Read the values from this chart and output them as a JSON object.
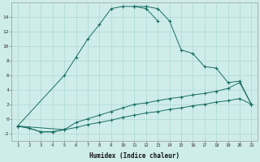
{
  "xlabel": "Humidex (Indice chaleur)",
  "background_color": "#ceecea",
  "grid_color": "#aed8d4",
  "line_color": "#1a6e64",
  "x_values": [
    1,
    2,
    3,
    4,
    5,
    6,
    7,
    8,
    9,
    10,
    11,
    12,
    13,
    14,
    15,
    16,
    17,
    18,
    19,
    20,
    21
  ],
  "series1": [
    -1.0,
    null,
    null,
    null,
    6.0,
    8.5,
    11.0,
    13.0,
    15.2,
    15.5,
    15.5,
    15.2,
    13.5,
    null,
    null,
    null,
    null,
    null,
    null,
    null,
    null
  ],
  "series2": [
    null,
    null,
    null,
    null,
    null,
    null,
    null,
    null,
    null,
    null,
    15.5,
    15.5,
    15.2,
    13.5,
    9.5,
    9.0,
    7.2,
    7.0,
    5.0,
    5.2,
    2.0
  ],
  "series3": [
    -1.0,
    -1.3,
    -1.8,
    -1.8,
    -1.5,
    null,
    null,
    null,
    null,
    null,
    null,
    null,
    null,
    null,
    null,
    null,
    null,
    null,
    null,
    null,
    null
  ],
  "series4": [
    -1.0,
    null,
    null,
    null,
    -1.5,
    -0.5,
    0.0,
    0.5,
    1.0,
    1.5,
    2.0,
    2.2,
    2.5,
    2.8,
    3.0,
    3.3,
    3.5,
    3.8,
    4.2,
    5.0,
    2.0
  ],
  "series5": [
    -1.0,
    -1.3,
    -1.8,
    -1.8,
    -1.5,
    -1.2,
    -0.8,
    -0.5,
    -0.2,
    0.2,
    0.5,
    0.8,
    1.0,
    1.3,
    1.5,
    1.8,
    2.0,
    2.3,
    2.5,
    2.8,
    2.0
  ],
  "ylim": [
    -3,
    16
  ],
  "xlim": [
    0.5,
    21.5
  ],
  "yticks": [
    -2,
    0,
    2,
    4,
    6,
    8,
    10,
    12,
    14
  ]
}
